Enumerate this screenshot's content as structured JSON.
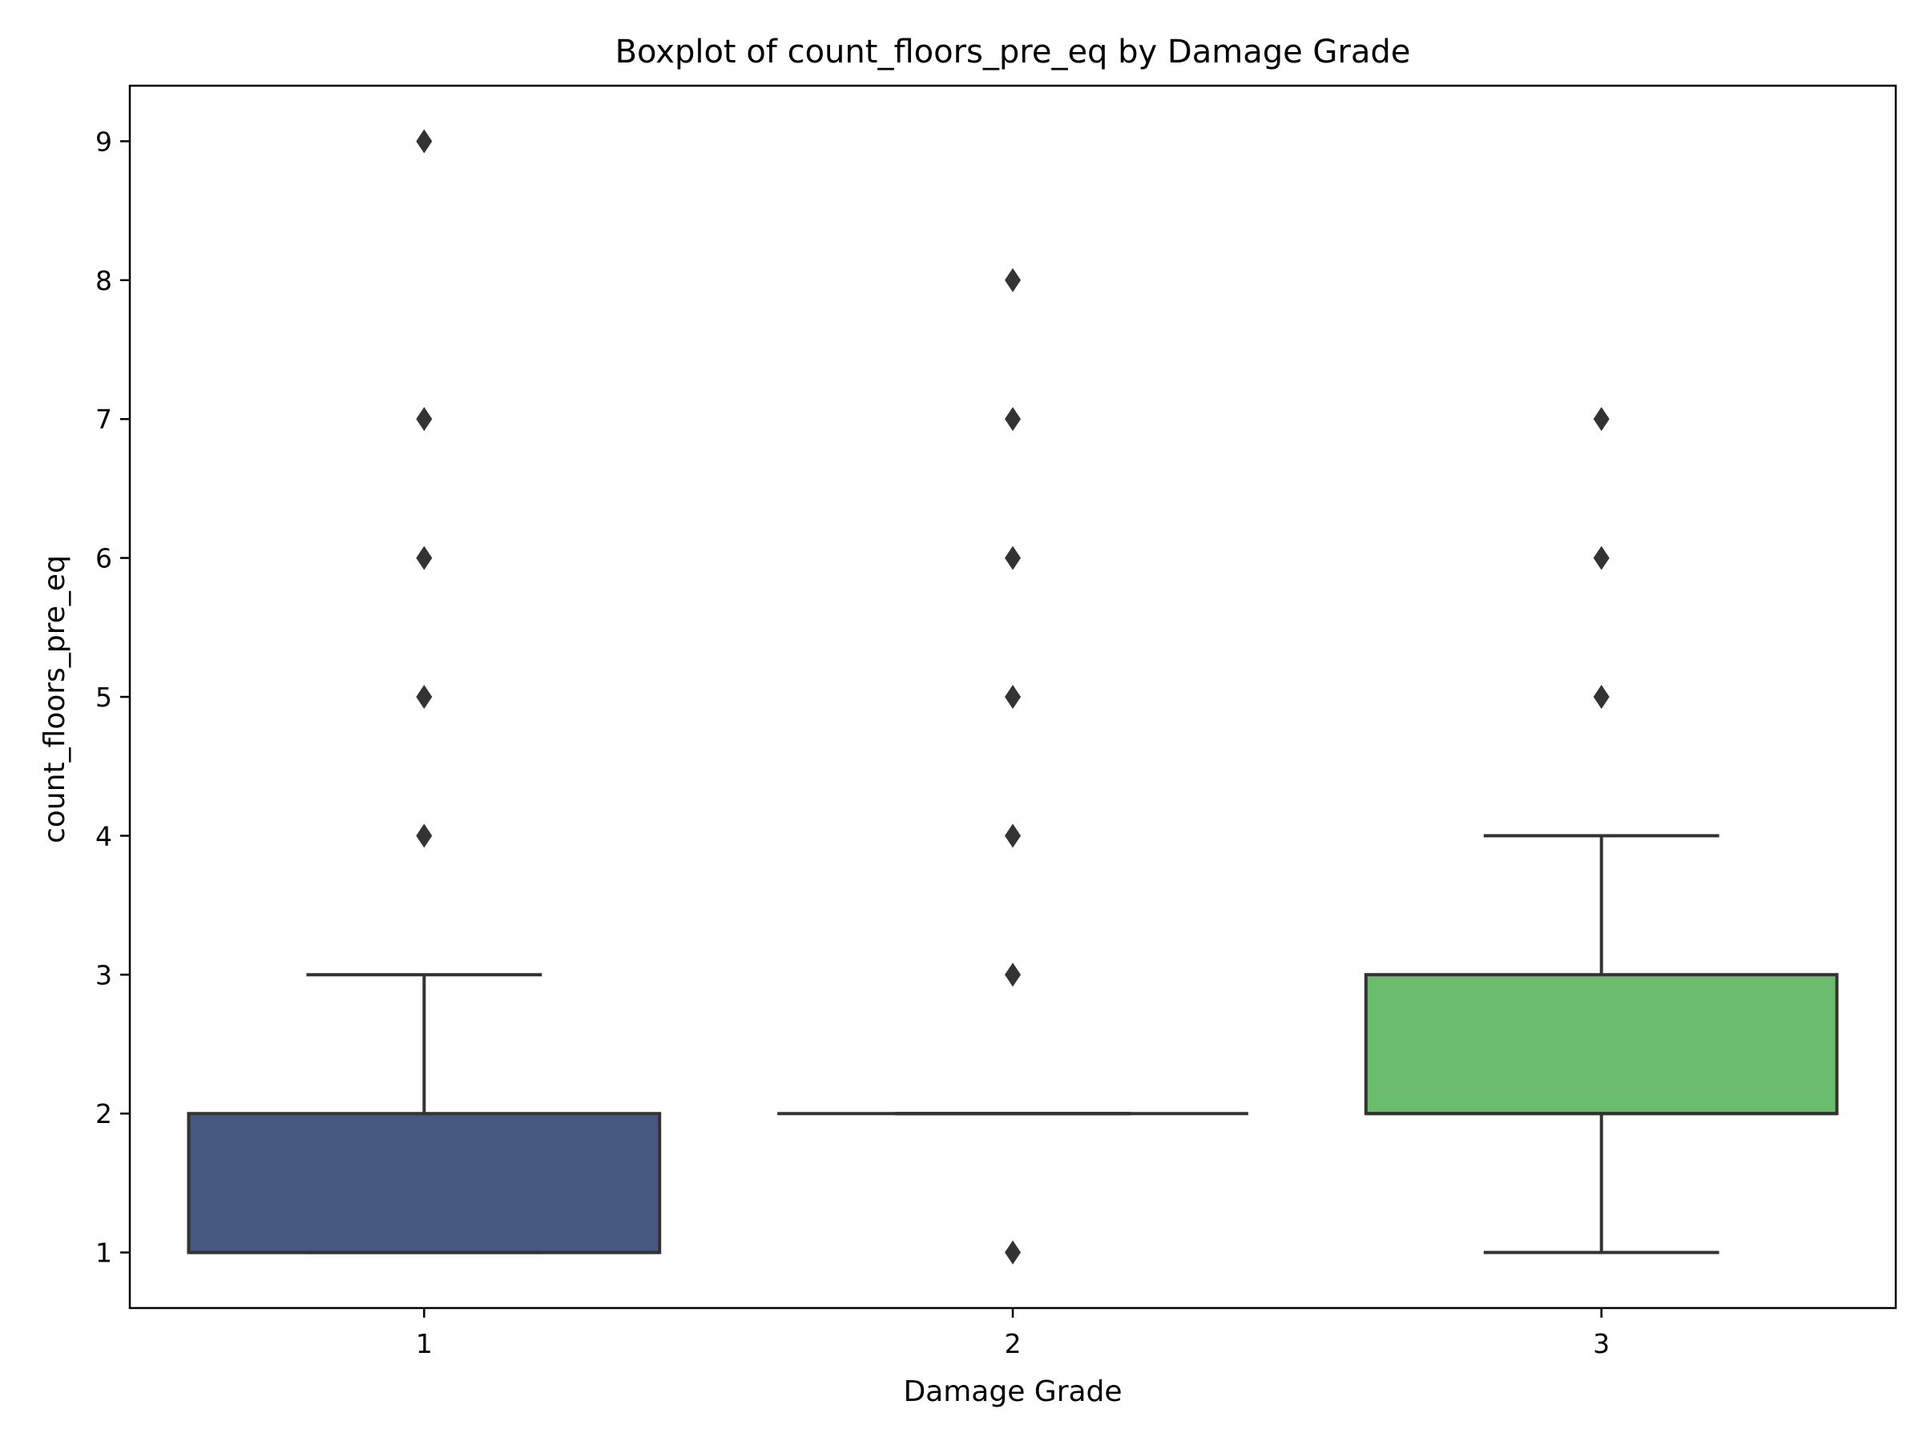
{
  "chart_data": {
    "type": "box",
    "title": "Boxplot of count_floors_pre_eq by Damage Grade",
    "xlabel": "Damage Grade",
    "ylabel": "count_floors_pre_eq",
    "ylim": [
      0.6,
      9.4
    ],
    "yticks": [
      1,
      2,
      3,
      4,
      5,
      6,
      7,
      8,
      9
    ],
    "categories": [
      "1",
      "2",
      "3"
    ],
    "grid": false,
    "legend": "none",
    "boxes": [
      {
        "category": "1",
        "whisker_low": 1,
        "q1": 1,
        "median": 1,
        "q3": 2,
        "whisker_high": 3,
        "outliers": [
          4,
          5,
          6,
          7,
          9
        ],
        "color": "#46587f"
      },
      {
        "category": "2",
        "whisker_low": 2,
        "q1": 2,
        "median": 2,
        "q3": 2,
        "whisker_high": 2,
        "outliers": [
          1,
          3,
          4,
          5,
          6,
          7,
          8
        ],
        "color": "#2ca58d"
      },
      {
        "category": "3",
        "whisker_low": 1,
        "q1": 2,
        "median": 2,
        "q3": 3,
        "whisker_high": 4,
        "outliers": [
          5,
          6,
          7
        ],
        "color": "#6bbd6e"
      }
    ],
    "line_color": "#333333"
  }
}
